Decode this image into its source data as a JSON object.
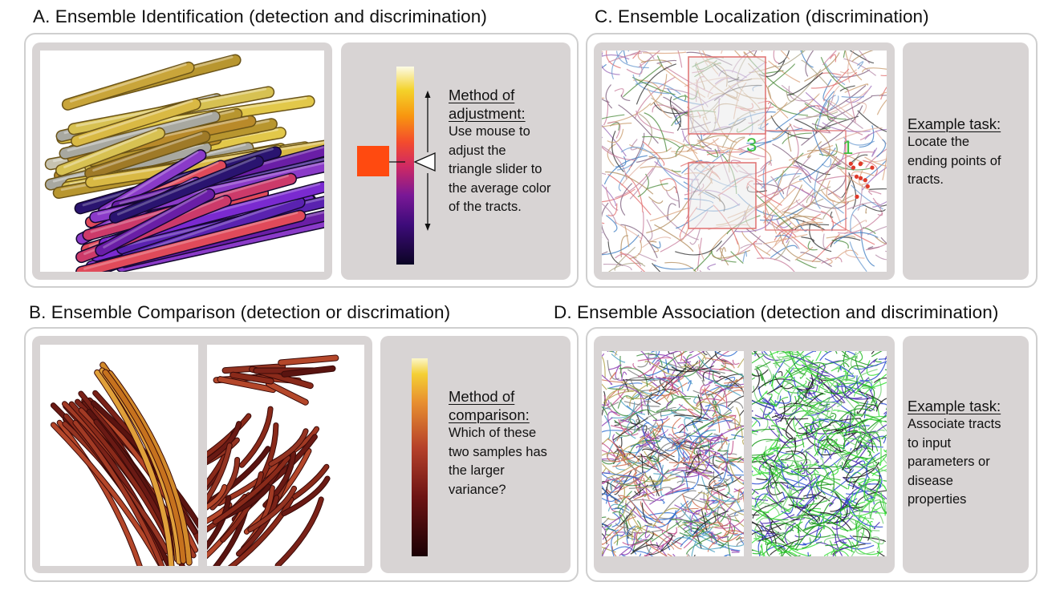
{
  "panels": {
    "a": {
      "title": "A. Ensemble Identification (detection and discrimination)",
      "heading": [
        "Method of",
        "adjustment:"
      ],
      "body": [
        "Use mouse to",
        "adjust the",
        "triangle slider to",
        "the average color",
        "of the tracts."
      ]
    },
    "b": {
      "title": "B. Ensemble Comparison (detection or discrimation)",
      "heading": [
        "Method of",
        "comparison:"
      ],
      "body": [
        "Which of these",
        "two samples has",
        "the larger",
        "variance?"
      ]
    },
    "c": {
      "title": "C. Ensemble Localization (discrimination)",
      "heading": [
        "Example task:"
      ],
      "body": [
        "Locate the",
        "ending points of",
        "tracts."
      ],
      "region_labels": [
        "3",
        "1"
      ]
    },
    "d": {
      "title": "D. Ensemble Association (detection and discrimination)",
      "heading": [
        "Example task:"
      ],
      "body": [
        "Associate tracts",
        "to input",
        "parameters or",
        "disease",
        "properties"
      ]
    }
  },
  "colors": {
    "panel_gray": "#d8d4d4",
    "outline": "#cfcfcf",
    "selected_swatch": "#ff4a10"
  }
}
